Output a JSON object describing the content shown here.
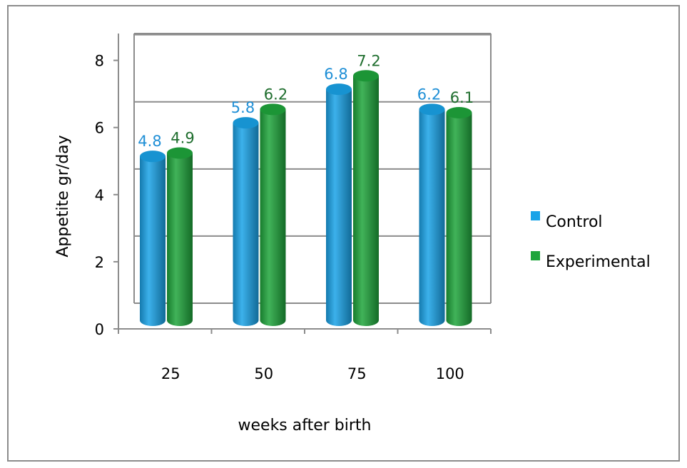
{
  "chart_data": {
    "type": "bar",
    "categories": [
      "25",
      "50",
      "75",
      "100"
    ],
    "series": [
      {
        "name": "Control",
        "values": [
          4.8,
          5.8,
          6.8,
          6.2
        ],
        "color": "#1aa3e8",
        "labelColor": "#1f8fd6"
      },
      {
        "name": "Experimental",
        "values": [
          4.9,
          6.2,
          7.2,
          6.1
        ],
        "color": "#1fa53c",
        "labelColor": "#1f6e2e"
      }
    ],
    "yticks": [
      "0",
      "2",
      "4",
      "6",
      "8"
    ],
    "ylim": [
      0,
      8.8
    ],
    "xlabel": "weeks after birth",
    "ylabel": "Appetite  gr/day",
    "title": "",
    "grid": true,
    "legend_position": "right"
  }
}
